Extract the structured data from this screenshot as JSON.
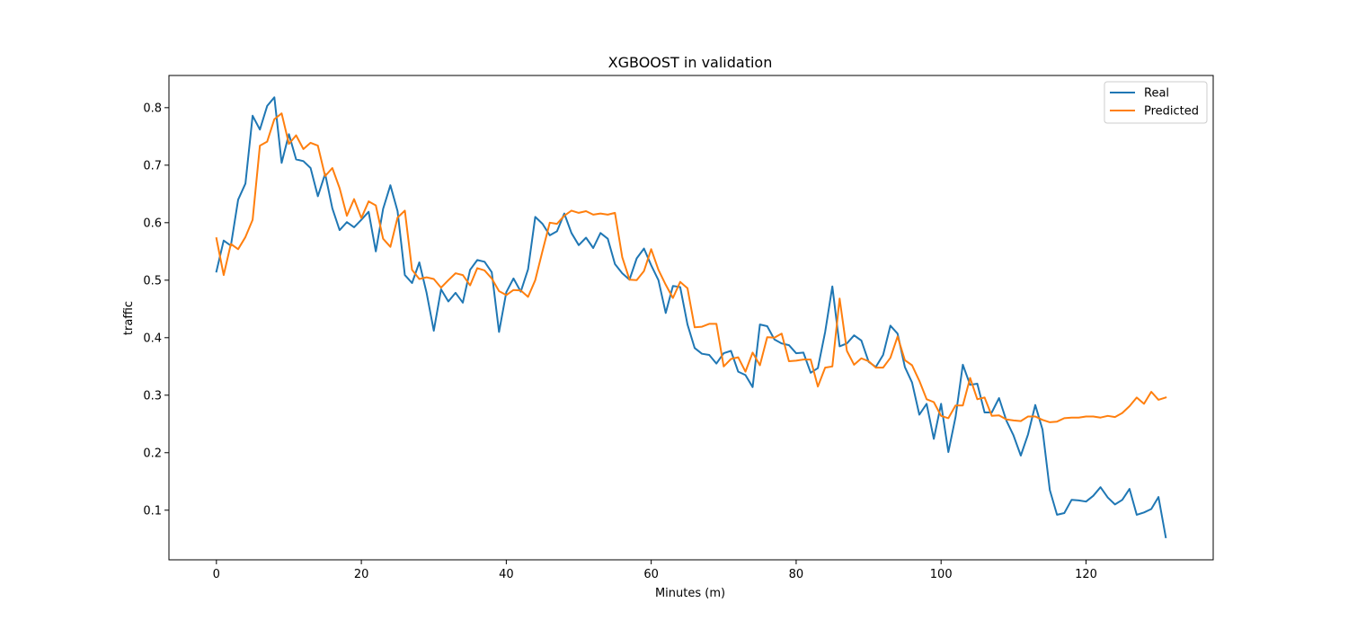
{
  "chart_data": {
    "type": "line",
    "title": "XGBOOST in validation",
    "xlabel": "Minutes (m)",
    "ylabel": "traffic",
    "xlim": [
      -6.55,
      137.55
    ],
    "ylim": [
      0.0137,
      0.856
    ],
    "xticks": [
      0,
      20,
      40,
      60,
      80,
      100,
      120
    ],
    "yticks": [
      0.1,
      0.2,
      0.3,
      0.4,
      0.5,
      0.6,
      0.7,
      0.8
    ],
    "grid": false,
    "legend_position": "top-right",
    "series": [
      {
        "name": "Real",
        "color": "#1f77b4",
        "x_start": 0,
        "x_step": 1,
        "values": [
          0.515,
          0.569,
          0.56,
          0.64,
          0.668,
          0.786,
          0.762,
          0.803,
          0.818,
          0.704,
          0.754,
          0.71,
          0.707,
          0.695,
          0.646,
          0.685,
          0.625,
          0.587,
          0.601,
          0.592,
          0.605,
          0.619,
          0.55,
          0.624,
          0.665,
          0.62,
          0.509,
          0.495,
          0.531,
          0.478,
          0.412,
          0.484,
          0.463,
          0.478,
          0.461,
          0.518,
          0.535,
          0.532,
          0.514,
          0.41,
          0.479,
          0.503,
          0.48,
          0.519,
          0.61,
          0.598,
          0.578,
          0.585,
          0.616,
          0.582,
          0.561,
          0.574,
          0.556,
          0.582,
          0.572,
          0.528,
          0.512,
          0.501,
          0.538,
          0.555,
          0.526,
          0.5,
          0.443,
          0.49,
          0.488,
          0.423,
          0.382,
          0.372,
          0.37,
          0.355,
          0.373,
          0.377,
          0.341,
          0.335,
          0.314,
          0.423,
          0.42,
          0.397,
          0.39,
          0.387,
          0.373,
          0.374,
          0.339,
          0.347,
          0.41,
          0.489,
          0.385,
          0.39,
          0.404,
          0.395,
          0.358,
          0.349,
          0.37,
          0.421,
          0.407,
          0.349,
          0.322,
          0.266,
          0.285,
          0.224,
          0.285,
          0.201,
          0.262,
          0.353,
          0.318,
          0.32,
          0.27,
          0.27,
          0.295,
          0.256,
          0.23,
          0.195,
          0.232,
          0.283,
          0.24,
          0.135,
          0.092,
          0.095,
          0.118,
          0.117,
          0.115,
          0.125,
          0.14,
          0.122,
          0.11,
          0.118,
          0.137,
          0.092,
          0.096,
          0.102,
          0.123,
          0.053
        ]
      },
      {
        "name": "Predicted",
        "color": "#ff7f0e",
        "x_start": 0,
        "x_step": 1,
        "values": [
          0.573,
          0.509,
          0.563,
          0.554,
          0.575,
          0.605,
          0.734,
          0.741,
          0.78,
          0.79,
          0.737,
          0.752,
          0.728,
          0.739,
          0.734,
          0.681,
          0.695,
          0.66,
          0.612,
          0.641,
          0.608,
          0.637,
          0.63,
          0.572,
          0.558,
          0.609,
          0.621,
          0.518,
          0.502,
          0.505,
          0.502,
          0.487,
          0.5,
          0.512,
          0.509,
          0.491,
          0.521,
          0.517,
          0.503,
          0.481,
          0.474,
          0.483,
          0.482,
          0.471,
          0.5,
          0.551,
          0.6,
          0.598,
          0.612,
          0.621,
          0.617,
          0.62,
          0.614,
          0.616,
          0.614,
          0.617,
          0.54,
          0.501,
          0.5,
          0.516,
          0.554,
          0.518,
          0.492,
          0.469,
          0.497,
          0.486,
          0.418,
          0.419,
          0.424,
          0.424,
          0.35,
          0.363,
          0.366,
          0.341,
          0.374,
          0.352,
          0.401,
          0.4,
          0.407,
          0.359,
          0.36,
          0.362,
          0.362,
          0.315,
          0.348,
          0.35,
          0.468,
          0.377,
          0.353,
          0.364,
          0.359,
          0.348,
          0.348,
          0.365,
          0.402,
          0.361,
          0.352,
          0.325,
          0.293,
          0.288,
          0.264,
          0.26,
          0.282,
          0.282,
          0.33,
          0.293,
          0.296,
          0.264,
          0.265,
          0.258,
          0.256,
          0.255,
          0.263,
          0.263,
          0.257,
          0.253,
          0.254,
          0.26,
          0.261,
          0.261,
          0.263,
          0.263,
          0.261,
          0.264,
          0.262,
          0.269,
          0.281,
          0.296,
          0.285,
          0.306,
          0.292,
          0.296
        ]
      }
    ]
  }
}
